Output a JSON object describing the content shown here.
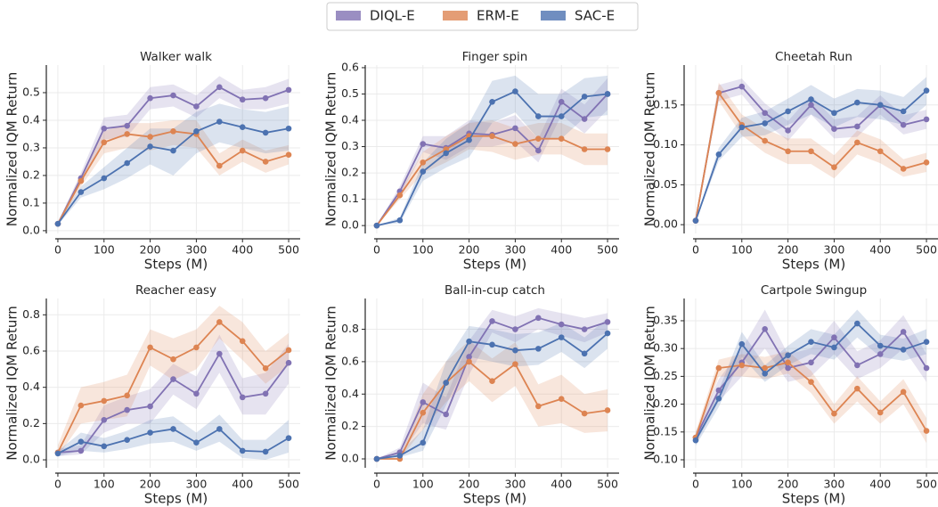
{
  "chart_data": [
    {
      "type": "line",
      "title": "Walker walk",
      "x_label": "Steps (M)",
      "y_label": "Normalized IQM Return",
      "grid": true,
      "legend": "upper center",
      "x": [
        0,
        50,
        100,
        150,
        200,
        250,
        300,
        350,
        400,
        450,
        500
      ],
      "xlim": [
        -25,
        525
      ],
      "xticks": [
        0,
        100,
        200,
        300,
        400,
        500
      ],
      "ylim": [
        -0.01,
        0.6
      ],
      "yticks": [
        {
          "value": 0,
          "label": "0.0"
        },
        0.1,
        0.2,
        0.3,
        0.4,
        0.5
      ],
      "series": [
        {
          "name": "DIQL-E",
          "color": "#8172b3",
          "values": [
            0.025,
            0.19,
            0.37,
            0.38,
            0.48,
            0.49,
            0.45,
            0.52,
            0.475,
            0.48,
            0.51
          ],
          "lower": [
            0.02,
            0.17,
            0.33,
            0.34,
            0.44,
            0.45,
            0.41,
            0.48,
            0.44,
            0.44,
            0.46
          ],
          "upper": [
            0.03,
            0.21,
            0.41,
            0.42,
            0.52,
            0.53,
            0.49,
            0.56,
            0.51,
            0.52,
            0.55
          ]
        },
        {
          "name": "ERM-E",
          "color": "#dd8452",
          "values": [
            0.025,
            0.18,
            0.32,
            0.35,
            0.34,
            0.36,
            0.35,
            0.235,
            0.29,
            0.25,
            0.275
          ],
          "lower": [
            0.02,
            0.16,
            0.28,
            0.3,
            0.29,
            0.31,
            0.3,
            0.2,
            0.25,
            0.21,
            0.24
          ],
          "upper": [
            0.03,
            0.2,
            0.36,
            0.39,
            0.39,
            0.4,
            0.4,
            0.28,
            0.33,
            0.29,
            0.31
          ]
        },
        {
          "name": "SAC-E",
          "color": "#4c72b0",
          "values": [
            0.025,
            0.14,
            0.19,
            0.245,
            0.305,
            0.29,
            0.36,
            0.395,
            0.375,
            0.355,
            0.37
          ],
          "lower": [
            0.02,
            0.12,
            0.15,
            0.19,
            0.24,
            0.2,
            0.28,
            0.32,
            0.3,
            0.28,
            0.29
          ],
          "upper": [
            0.03,
            0.16,
            0.23,
            0.3,
            0.37,
            0.37,
            0.43,
            0.46,
            0.44,
            0.43,
            0.45
          ]
        }
      ]
    },
    {
      "type": "line",
      "title": "Finger spin",
      "x_label": "Steps (M)",
      "y_label": "Normalized IQM Return",
      "grid": true,
      "x": [
        0,
        50,
        100,
        150,
        200,
        250,
        300,
        350,
        400,
        450,
        500
      ],
      "xlim": [
        -25,
        525
      ],
      "xticks": [
        0,
        100,
        200,
        300,
        400,
        500
      ],
      "ylim": [
        -0.03,
        0.61
      ],
      "yticks": [
        {
          "value": 0,
          "label": "0.0"
        },
        0.1,
        0.2,
        0.3,
        0.4,
        0.5,
        0.6
      ],
      "series": [
        {
          "name": "DIQL-E",
          "color": "#8172b3",
          "values": [
            0,
            0.13,
            0.31,
            0.295,
            0.35,
            0.345,
            0.37,
            0.285,
            0.47,
            0.405,
            0.5
          ],
          "lower": [
            0,
            0.11,
            0.28,
            0.25,
            0.3,
            0.3,
            0.32,
            0.24,
            0.42,
            0.35,
            0.44
          ],
          "upper": [
            0,
            0.15,
            0.34,
            0.34,
            0.4,
            0.39,
            0.42,
            0.33,
            0.52,
            0.46,
            0.56
          ]
        },
        {
          "name": "ERM-E",
          "color": "#dd8452",
          "values": [
            0,
            0.115,
            0.24,
            0.29,
            0.34,
            0.34,
            0.31,
            0.33,
            0.33,
            0.29,
            0.29
          ],
          "lower": [
            0,
            0.1,
            0.2,
            0.24,
            0.29,
            0.28,
            0.25,
            0.27,
            0.27,
            0.23,
            0.23
          ],
          "upper": [
            0,
            0.13,
            0.28,
            0.34,
            0.39,
            0.4,
            0.37,
            0.39,
            0.39,
            0.35,
            0.35
          ]
        },
        {
          "name": "SAC-E",
          "color": "#4c72b0",
          "values": [
            0,
            0.02,
            0.205,
            0.275,
            0.325,
            0.47,
            0.51,
            0.415,
            0.415,
            0.49,
            0.5
          ],
          "lower": [
            0,
            0.01,
            0.17,
            0.22,
            0.26,
            0.39,
            0.43,
            0.33,
            0.33,
            0.41,
            0.42
          ],
          "upper": [
            0,
            0.03,
            0.24,
            0.33,
            0.39,
            0.55,
            0.57,
            0.5,
            0.5,
            0.56,
            0.57
          ]
        }
      ]
    },
    {
      "type": "line",
      "title": "Cheetah Run",
      "x_label": "Steps (M)",
      "y_label": "Normalized IQM Return",
      "grid": true,
      "x": [
        0,
        50,
        100,
        150,
        200,
        250,
        300,
        350,
        400,
        450,
        500
      ],
      "xlim": [
        -25,
        525
      ],
      "xticks": [
        0,
        100,
        200,
        300,
        400,
        500
      ],
      "ylim": [
        -0.011,
        0.2
      ],
      "yticks": [
        {
          "value": 0,
          "label": "0.00"
        },
        0.05,
        {
          "value": 0.1,
          "label": "0.10"
        },
        0.15
      ],
      "series": [
        {
          "name": "DIQL-E",
          "color": "#8172b3",
          "values": [
            0.005,
            0.165,
            0.173,
            0.14,
            0.118,
            0.15,
            0.12,
            0.123,
            0.15,
            0.125,
            0.132
          ],
          "lower": [
            0.004,
            0.155,
            0.163,
            0.128,
            0.105,
            0.138,
            0.108,
            0.11,
            0.138,
            0.113,
            0.12
          ],
          "upper": [
            0.006,
            0.175,
            0.183,
            0.152,
            0.13,
            0.162,
            0.132,
            0.136,
            0.162,
            0.137,
            0.144
          ]
        },
        {
          "name": "ERM-E",
          "color": "#dd8452",
          "values": [
            0.005,
            0.165,
            0.125,
            0.105,
            0.092,
            0.092,
            0.072,
            0.103,
            0.092,
            0.07,
            0.078
          ],
          "lower": [
            0.004,
            0.155,
            0.112,
            0.09,
            0.076,
            0.076,
            0.058,
            0.088,
            0.077,
            0.06,
            0.066
          ],
          "upper": [
            0.006,
            0.178,
            0.138,
            0.12,
            0.108,
            0.108,
            0.087,
            0.118,
            0.107,
            0.082,
            0.09
          ]
        },
        {
          "name": "SAC-E",
          "color": "#4c72b0",
          "values": [
            0.005,
            0.088,
            0.122,
            0.127,
            0.142,
            0.157,
            0.14,
            0.153,
            0.15,
            0.142,
            0.168
          ],
          "lower": [
            0.004,
            0.08,
            0.11,
            0.112,
            0.125,
            0.138,
            0.122,
            0.135,
            0.132,
            0.125,
            0.15
          ],
          "upper": [
            0.006,
            0.096,
            0.134,
            0.142,
            0.158,
            0.175,
            0.158,
            0.17,
            0.168,
            0.16,
            0.185
          ]
        }
      ]
    },
    {
      "type": "line",
      "title": "Reacher easy",
      "x_label": "Steps (M)",
      "y_label": "Normalized IQM Return",
      "grid": true,
      "x": [
        0,
        50,
        100,
        150,
        200,
        250,
        300,
        350,
        400,
        450,
        500
      ],
      "xlim": [
        -25,
        525
      ],
      "xticks": [
        0,
        100,
        200,
        300,
        400,
        500
      ],
      "ylim": [
        -0.044,
        0.89
      ],
      "yticks": [
        {
          "value": 0,
          "label": "0.0"
        },
        0.2,
        0.4,
        0.6,
        0.8
      ],
      "series": [
        {
          "name": "DIQL-E",
          "color": "#8172b3",
          "values": [
            0.04,
            0.05,
            0.22,
            0.275,
            0.295,
            0.445,
            0.365,
            0.585,
            0.345,
            0.365,
            0.535
          ],
          "lower": [
            0.02,
            0.03,
            0.15,
            0.2,
            0.2,
            0.36,
            0.28,
            0.48,
            0.25,
            0.25,
            0.42
          ],
          "upper": [
            0.06,
            0.08,
            0.3,
            0.35,
            0.39,
            0.53,
            0.46,
            0.69,
            0.45,
            0.48,
            0.64
          ]
        },
        {
          "name": "ERM-E",
          "color": "#dd8452",
          "values": [
            0.04,
            0.3,
            0.325,
            0.355,
            0.62,
            0.555,
            0.62,
            0.76,
            0.655,
            0.505,
            0.605
          ],
          "lower": [
            0.02,
            0.2,
            0.22,
            0.24,
            0.52,
            0.44,
            0.5,
            0.67,
            0.55,
            0.42,
            0.52
          ],
          "upper": [
            0.08,
            0.4,
            0.43,
            0.47,
            0.72,
            0.67,
            0.72,
            0.85,
            0.76,
            0.6,
            0.7
          ]
        },
        {
          "name": "SAC-E",
          "color": "#4c72b0",
          "values": [
            0.035,
            0.1,
            0.075,
            0.11,
            0.15,
            0.17,
            0.095,
            0.17,
            0.05,
            0.045,
            0.12
          ],
          "lower": [
            0.02,
            0.05,
            0.04,
            0.06,
            0.09,
            0.1,
            0.05,
            0.1,
            0.01,
            0,
            0.04
          ],
          "upper": [
            0.05,
            0.15,
            0.12,
            0.16,
            0.22,
            0.24,
            0.15,
            0.25,
            0.11,
            0.11,
            0.22
          ]
        }
      ]
    },
    {
      "type": "line",
      "title": "Ball-in-cup catch",
      "x_label": "Steps (M)",
      "y_label": "Normalized IQM Return",
      "grid": true,
      "x": [
        0,
        50,
        100,
        150,
        200,
        250,
        300,
        350,
        400,
        450,
        500
      ],
      "xlim": [
        -25,
        525
      ],
      "xticks": [
        0,
        100,
        200,
        300,
        400,
        500
      ],
      "ylim": [
        -0.055,
        0.99
      ],
      "yticks": [
        {
          "value": 0,
          "label": "0.0"
        },
        0.2,
        0.4,
        0.6,
        0.8
      ],
      "series": [
        {
          "name": "DIQL-E",
          "color": "#8172b3",
          "values": [
            0,
            0.04,
            0.35,
            0.275,
            0.63,
            0.85,
            0.8,
            0.87,
            0.83,
            0.8,
            0.845
          ],
          "lower": [
            0,
            0.02,
            0.22,
            0.18,
            0.52,
            0.78,
            0.72,
            0.8,
            0.76,
            0.72,
            0.78
          ],
          "upper": [
            0,
            0.07,
            0.47,
            0.38,
            0.73,
            0.92,
            0.88,
            0.93,
            0.9,
            0.87,
            0.9
          ]
        },
        {
          "name": "ERM-E",
          "color": "#dd8452",
          "values": [
            0,
            0,
            0.285,
            0.47,
            0.6,
            0.48,
            0.585,
            0.325,
            0.37,
            0.28,
            0.3
          ],
          "lower": [
            0,
            0,
            0.18,
            0.35,
            0.48,
            0.35,
            0.45,
            0.2,
            0.22,
            0.16,
            0.17
          ],
          "upper": [
            0,
            0.01,
            0.4,
            0.6,
            0.73,
            0.62,
            0.72,
            0.46,
            0.52,
            0.4,
            0.43
          ]
        },
        {
          "name": "SAC-E",
          "color": "#4c72b0",
          "values": [
            0,
            0.02,
            0.1,
            0.47,
            0.725,
            0.705,
            0.67,
            0.68,
            0.75,
            0.65,
            0.775
          ],
          "lower": [
            0,
            0.01,
            0.05,
            0.33,
            0.63,
            0.6,
            0.57,
            0.58,
            0.66,
            0.56,
            0.68
          ],
          "upper": [
            0,
            0.04,
            0.18,
            0.6,
            0.82,
            0.8,
            0.77,
            0.78,
            0.84,
            0.75,
            0.87
          ]
        }
      ]
    },
    {
      "type": "line",
      "title": "Cartpole Swingup",
      "x_label": "Steps (M)",
      "y_label": "Normalized IQM Return",
      "grid": true,
      "x": [
        0,
        50,
        100,
        150,
        200,
        250,
        300,
        350,
        400,
        450,
        500
      ],
      "xlim": [
        -25,
        525
      ],
      "xticks": [
        0,
        100,
        200,
        300,
        400,
        500
      ],
      "ylim": [
        0.0856,
        0.39
      ],
      "yticks": [
        {
          "value": 0.1,
          "label": "0.10"
        },
        0.15,
        {
          "value": 0.2,
          "label": "0.20"
        },
        0.25,
        {
          "value": 0.3,
          "label": "0.30"
        },
        0.35
      ],
      "series": [
        {
          "name": "DIQL-E",
          "color": "#8172b3",
          "values": [
            0.14,
            0.225,
            0.275,
            0.335,
            0.265,
            0.275,
            0.32,
            0.27,
            0.29,
            0.33,
            0.265
          ],
          "lower": [
            0.13,
            0.205,
            0.25,
            0.3,
            0.24,
            0.25,
            0.29,
            0.245,
            0.265,
            0.3,
            0.24
          ],
          "upper": [
            0.15,
            0.245,
            0.3,
            0.37,
            0.29,
            0.3,
            0.35,
            0.295,
            0.315,
            0.36,
            0.29
          ]
        },
        {
          "name": "ERM-E",
          "color": "#dd8452",
          "values": [
            0.14,
            0.265,
            0.27,
            0.265,
            0.275,
            0.24,
            0.183,
            0.228,
            0.185,
            0.222,
            0.152
          ],
          "lower": [
            0.13,
            0.25,
            0.25,
            0.245,
            0.255,
            0.22,
            0.165,
            0.205,
            0.165,
            0.2,
            0.13
          ],
          "upper": [
            0.15,
            0.28,
            0.29,
            0.285,
            0.295,
            0.26,
            0.2,
            0.25,
            0.205,
            0.245,
            0.175
          ]
        },
        {
          "name": "SAC-E",
          "color": "#4c72b0",
          "values": [
            0.135,
            0.21,
            0.308,
            0.255,
            0.288,
            0.312,
            0.302,
            0.345,
            0.305,
            0.298,
            0.312
          ],
          "lower": [
            0.125,
            0.195,
            0.285,
            0.24,
            0.27,
            0.29,
            0.28,
            0.32,
            0.285,
            0.278,
            0.29
          ],
          "upper": [
            0.145,
            0.225,
            0.33,
            0.27,
            0.305,
            0.335,
            0.325,
            0.37,
            0.325,
            0.318,
            0.335
          ]
        }
      ]
    }
  ]
}
